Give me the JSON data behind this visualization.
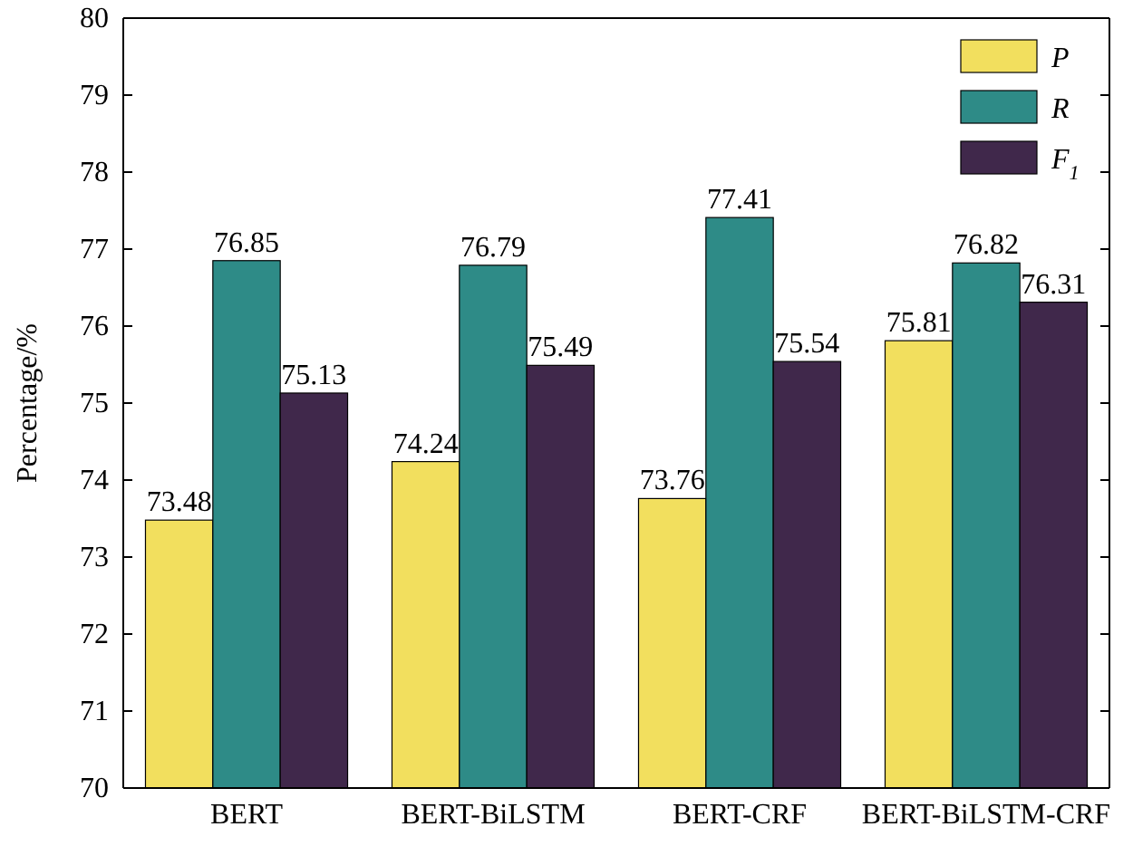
{
  "chart_data": {
    "type": "bar",
    "ylabel": "Percentage/%",
    "categories": [
      "BERT",
      "BERT-BiLSTM",
      "BERT-CRF",
      "BERT-BiLSTM-CRF"
    ],
    "series": [
      {
        "name": "P",
        "color": "#f2df5e",
        "values": [
          73.48,
          74.24,
          73.76,
          75.81
        ]
      },
      {
        "name": "R",
        "color": "#2e8b87",
        "values": [
          76.85,
          76.79,
          77.41,
          76.82
        ]
      },
      {
        "name": "F$_{1}$",
        "color": "#40284b",
        "values": [
          75.13,
          75.49,
          75.54,
          76.31
        ]
      }
    ],
    "ylim": [
      70,
      80
    ],
    "yticks": [
      70,
      71,
      72,
      73,
      74,
      75,
      76,
      77,
      78,
      79,
      80
    ],
    "data_labels": true,
    "grid": false,
    "legend": "top right"
  }
}
